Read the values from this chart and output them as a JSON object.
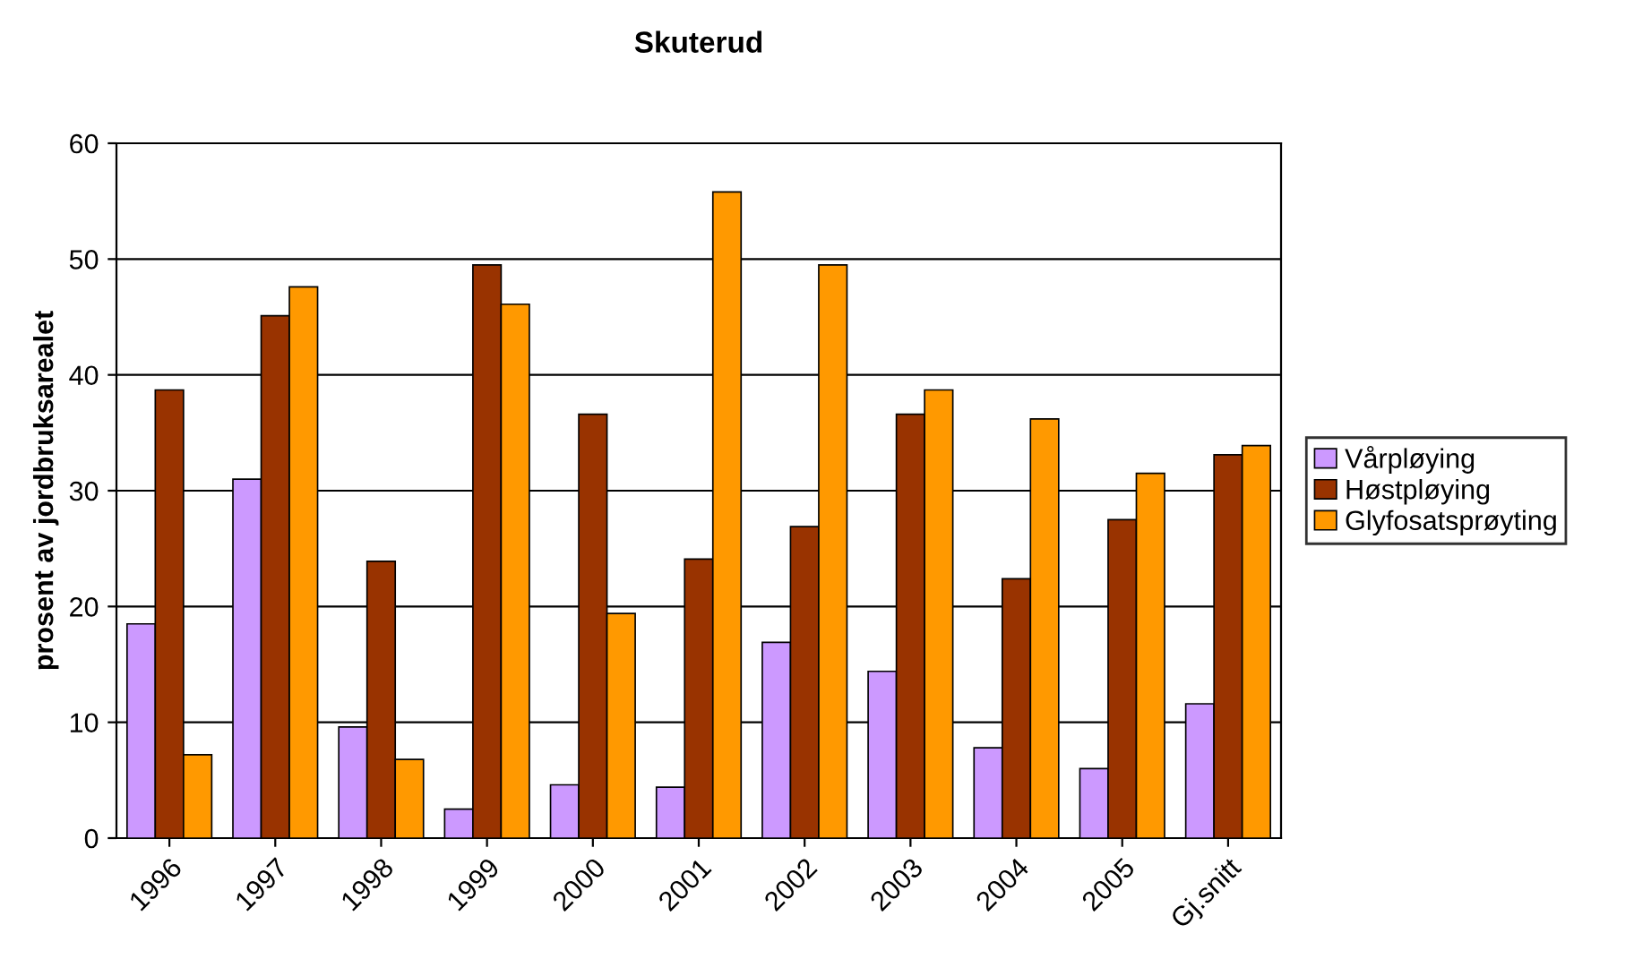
{
  "chart_data": {
    "type": "bar",
    "title": "Skuterud",
    "ylabel": "prosent av jordbruksarealet",
    "categories": [
      "1996",
      "1997",
      "1998",
      "1999",
      "2000",
      "2001",
      "2002",
      "2003",
      "2004",
      "2005",
      "Gj.snitt"
    ],
    "series": [
      {
        "name": "Vårpløying",
        "color": "#cc99ff",
        "values": [
          18.5,
          31.0,
          9.6,
          2.5,
          4.6,
          4.4,
          16.9,
          14.4,
          7.8,
          6.0,
          11.6
        ]
      },
      {
        "name": "Høstpløying",
        "color": "#993300",
        "values": [
          38.7,
          45.1,
          23.9,
          49.5,
          36.6,
          24.1,
          26.9,
          36.6,
          22.4,
          27.5,
          33.1
        ]
      },
      {
        "name": "Glyfosatsprøyting",
        "color": "#ff9900",
        "values": [
          7.2,
          47.6,
          6.8,
          46.1,
          19.4,
          55.8,
          49.5,
          38.7,
          36.2,
          31.5,
          33.9
        ]
      }
    ],
    "ylim": [
      0,
      60
    ],
    "yticks": [
      0,
      10,
      20,
      30,
      40,
      50,
      60
    ],
    "grid": "y",
    "legend": "right"
  }
}
